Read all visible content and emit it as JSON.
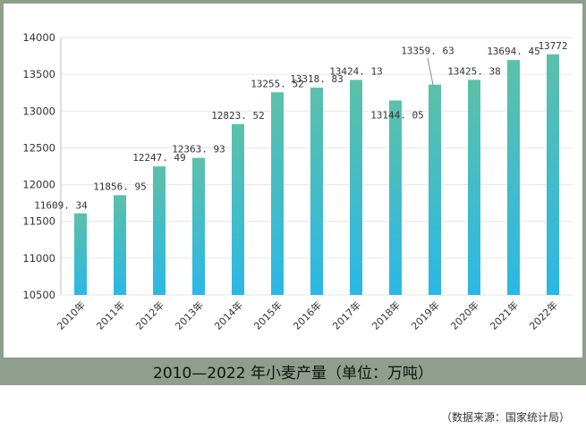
{
  "chart_data": {
    "type": "bar",
    "title": "2010—2022 年小麦产量（单位：万吨）",
    "xlabel": "",
    "ylabel": "",
    "categories": [
      "2010年",
      "2011年",
      "2012年",
      "2013年",
      "2014年",
      "2015年",
      "2016年",
      "2017年",
      "2018年",
      "2019年",
      "2020年",
      "2021年",
      "2022年"
    ],
    "values": [
      11609.34,
      11856.95,
      12247.49,
      12363.93,
      12823.52,
      13255.52,
      13318.83,
      13424.13,
      13144.05,
      13359.63,
      13425.38,
      13694.45,
      13772
    ],
    "value_labels": [
      "11609. 34",
      "11856. 95",
      "12247. 49",
      "12363. 93",
      "12823. 52",
      "13255. 52",
      "13318. 83",
      "13424. 13",
      "13144. 05",
      "13359. 63",
      "13425. 38",
      "13694. 45",
      "13772"
    ],
    "ylim": [
      10500,
      14000
    ],
    "yticks": [
      10500,
      11000,
      11500,
      12000,
      12500,
      13000,
      13500,
      14000
    ],
    "grid": true,
    "bar_color_top": "#5cc0a8",
    "bar_color_bottom": "#2bb8e6"
  },
  "caption": "2010—2022 年小麦产量（单位：万吨）",
  "source": "（数据来源：国家统计局）",
  "colors": {
    "band": "#8f9e8d",
    "grid": "#e6e6e6",
    "axis": "#bfbfbf"
  }
}
